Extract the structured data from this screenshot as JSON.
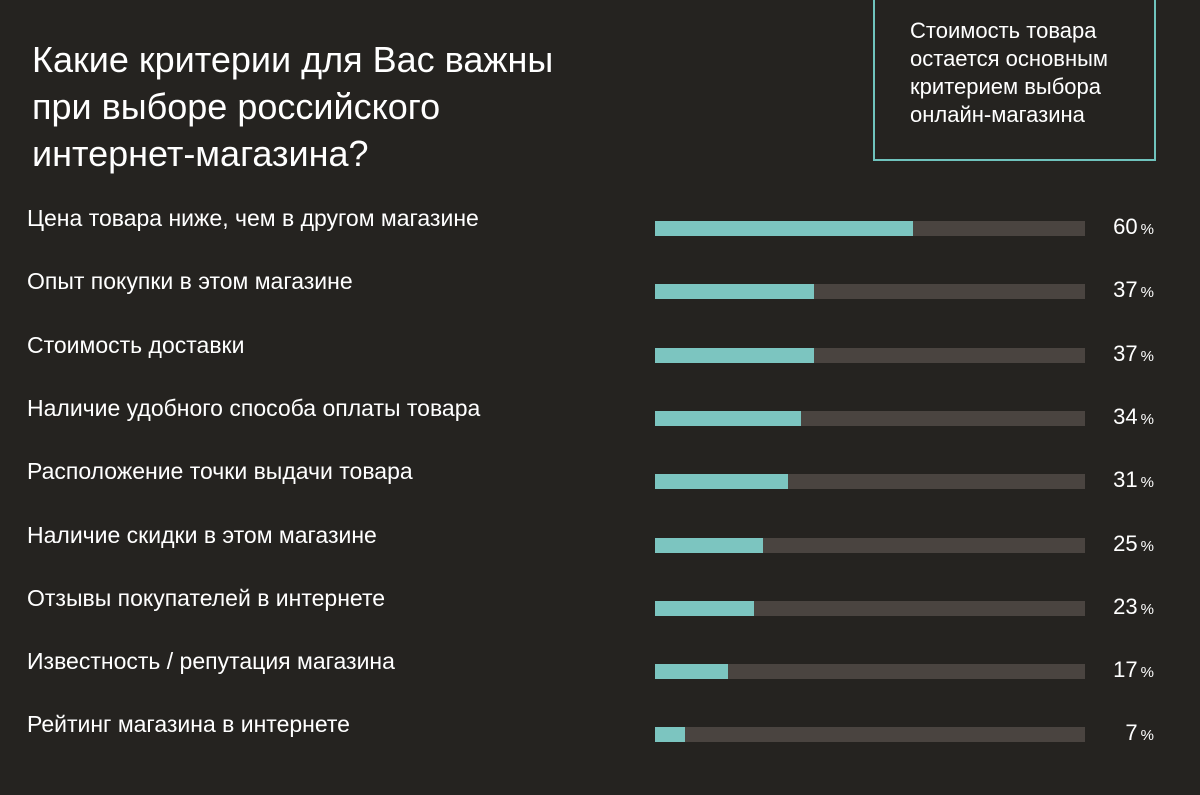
{
  "title_lines": [
    "Какие критерии для Вас важны",
    "при выборе российского",
    "интернет-магазина?"
  ],
  "callout_lines": [
    "Стоимость товара",
    "остается основным",
    "критерием выбора",
    "онлайн-магазина"
  ],
  "colors": {
    "background": "#252320",
    "bar_fill": "#7cc5c0",
    "bar_track": "#4a4440",
    "callout_border": "#6fc3bd"
  },
  "chart_data": {
    "type": "bar",
    "orientation": "horizontal",
    "unit": "%",
    "xlim": [
      0,
      100
    ],
    "categories": [
      "Цена товара ниже, чем в другом магазине",
      "Опыт покупки в этом магазине",
      "Стоимость доставки",
      "Наличие удобного способа оплаты товара",
      "Расположение точки выдачи товара",
      "Наличие скидки в этом магазине",
      "Отзывы покупателей в интернете",
      "Известность / репутация магазина",
      "Рейтинг магазина в интернете"
    ],
    "values": [
      60,
      37,
      37,
      34,
      31,
      25,
      23,
      17,
      7
    ],
    "grid": false,
    "legend": "none"
  }
}
